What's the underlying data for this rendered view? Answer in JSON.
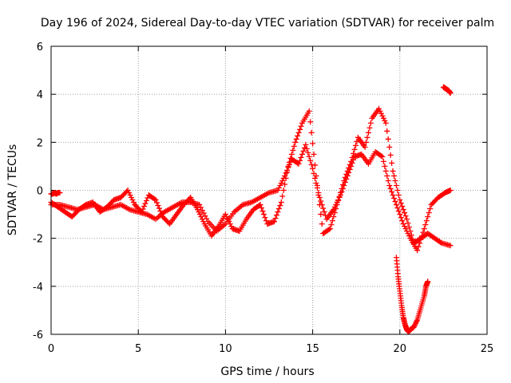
{
  "chart_data": {
    "type": "scatter",
    "title": "Day 196 of 2024, Sidereal Day-to-day VTEC variation (SDTVAR) for receiver palm",
    "xlabel": "GPS time / hours",
    "ylabel": "SDTVAR / TECUs",
    "xlim": [
      0,
      25
    ],
    "ylim": [
      -6,
      6
    ],
    "xticks": [
      "0",
      "5",
      "10",
      "15",
      "20",
      "25"
    ],
    "yticks": [
      "-6",
      "-4",
      "-2",
      "0",
      "2",
      "4",
      "6"
    ],
    "grid": true,
    "marker": "+",
    "color": "#ff0000",
    "series": [
      {
        "name": "s1",
        "x": [
          0.0,
          0.5,
          1.0,
          1.5,
          2.0,
          2.5,
          3.0,
          3.5,
          4.0,
          4.5,
          5.0,
          5.5,
          6.0,
          6.5,
          7.0,
          7.5,
          8.0,
          8.5,
          9.0,
          9.5,
          10.0,
          10.5,
          11.0,
          11.5,
          12.0,
          12.5,
          13.0,
          13.4,
          13.8,
          14.2,
          14.6,
          15.0,
          15.4,
          15.8,
          16.2,
          16.6,
          17.0,
          17.4,
          17.8,
          18.2,
          18.6,
          19.0,
          19.4,
          19.8,
          20.2,
          20.6,
          21.0,
          21.4,
          21.8,
          22.2,
          22.6,
          22.9
        ],
        "y": [
          -0.6,
          -0.6,
          -0.7,
          -0.8,
          -0.7,
          -0.6,
          -0.8,
          -0.7,
          -0.6,
          -0.8,
          -0.9,
          -1.0,
          -1.2,
          -0.9,
          -0.7,
          -0.5,
          -0.5,
          -0.6,
          -1.3,
          -1.7,
          -1.4,
          -0.9,
          -0.6,
          -0.5,
          -0.3,
          -0.1,
          0.0,
          0.6,
          1.3,
          1.1,
          1.9,
          0.9,
          -0.3,
          -1.2,
          -0.8,
          -0.2,
          0.6,
          1.4,
          1.5,
          1.1,
          1.6,
          1.4,
          0.2,
          -0.6,
          -1.4,
          -2.0,
          -2.5,
          -1.6,
          -0.6,
          -0.3,
          -0.1,
          0.0
        ]
      },
      {
        "name": "s2",
        "x": [
          0.0,
          0.4,
          0.8,
          1.2,
          1.6,
          2.0,
          2.4,
          2.8,
          3.2,
          3.6,
          4.0,
          4.4,
          4.8,
          5.2,
          5.6,
          6.0,
          6.4,
          6.8,
          7.2,
          7.6,
          8.0,
          8.4,
          8.8,
          9.2,
          9.6,
          10.0,
          10.4,
          10.8,
          11.2,
          11.6,
          12.0,
          12.4,
          12.8,
          13.2,
          13.6,
          14.0,
          14.4,
          14.8,
          15.2,
          15.6,
          16.0,
          16.4,
          16.8,
          17.2,
          17.6,
          18.0,
          18.4,
          18.8,
          19.2,
          19.6,
          20.0,
          20.4,
          20.8,
          21.2,
          21.6,
          22.0,
          22.4,
          22.9
        ],
        "y": [
          -0.5,
          -0.7,
          -0.9,
          -1.1,
          -0.8,
          -0.6,
          -0.5,
          -0.9,
          -0.7,
          -0.4,
          -0.3,
          0.0,
          -0.6,
          -0.9,
          -0.2,
          -0.4,
          -1.1,
          -1.4,
          -1.0,
          -0.6,
          -0.3,
          -0.8,
          -1.4,
          -1.9,
          -1.5,
          -1.0,
          -1.6,
          -1.7,
          -1.2,
          -0.8,
          -0.6,
          -1.4,
          -1.3,
          -0.5,
          1.0,
          2.0,
          2.8,
          3.3,
          0.6,
          -1.8,
          -1.6,
          -0.6,
          0.4,
          1.2,
          2.2,
          1.8,
          3.0,
          3.4,
          2.8,
          0.8,
          -0.4,
          -1.2,
          -2.2,
          -2.0,
          -1.8,
          -2.0,
          -2.2,
          -2.3
        ]
      },
      {
        "name": "s3",
        "x": [
          19.8,
          19.9,
          20.0,
          20.1,
          20.2,
          20.3,
          20.4,
          20.5,
          20.6,
          20.8,
          21.0,
          21.2,
          21.4,
          21.5,
          21.6
        ],
        "y": [
          -2.8,
          -3.6,
          -4.2,
          -4.8,
          -5.3,
          -5.6,
          -5.8,
          -5.9,
          -5.8,
          -5.7,
          -5.4,
          -4.9,
          -4.4,
          -4.0,
          -3.8
        ]
      },
      {
        "name": "s4",
        "x": [
          22.5,
          22.6,
          22.7,
          22.8,
          22.9
        ],
        "y": [
          4.3,
          4.25,
          4.2,
          4.15,
          4.05
        ]
      },
      {
        "name": "s5",
        "x": [
          0.0,
          0.1,
          0.2,
          0.3,
          0.4,
          0.5
        ],
        "y": [
          -0.15,
          -0.15,
          -0.1,
          -0.15,
          -0.1,
          -0.1
        ]
      }
    ]
  }
}
